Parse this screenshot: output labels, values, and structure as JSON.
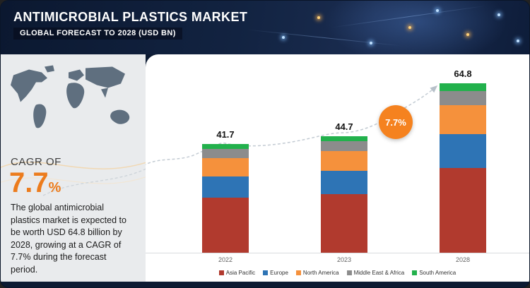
{
  "header": {
    "title": "ANTIMICROBIAL PLASTICS MARKET",
    "subtitle": "GLOBAL FORECAST TO 2028 (USD BN)"
  },
  "sidebar": {
    "cagr_label": "CAGR OF",
    "cagr_value": "7.7",
    "cagr_unit": "%",
    "description": "The global antimicrobial plastics market is expected to be worth USD 64.8 billion by 2028, growing at a CAGR of 7.7% during the forecast period."
  },
  "chart": {
    "growth_badge": "7.7%"
  },
  "chart_data": {
    "type": "bar",
    "stacked": true,
    "title": "Antimicrobial Plastics Market, Global Forecast to 2028 (USD BN)",
    "categories": [
      "2022",
      "2023",
      "2028"
    ],
    "totals": [
      "41.7",
      "44.7",
      "64.8"
    ],
    "series": [
      {
        "name": "Asia Pacific",
        "color": "#b13a2e",
        "values": [
          21.0,
          22.5,
          32.5
        ]
      },
      {
        "name": "Europe",
        "color": "#2e74b5",
        "values": [
          8.3,
          8.9,
          13.0
        ]
      },
      {
        "name": "North America",
        "color": "#f5913c",
        "values": [
          7.0,
          7.6,
          11.0
        ]
      },
      {
        "name": "Middle East & Africa",
        "color": "#8c8c8c",
        "values": [
          3.5,
          3.7,
          5.3
        ]
      },
      {
        "name": "South America",
        "color": "#22b14c",
        "values": [
          1.9,
          2.0,
          3.0
        ]
      }
    ],
    "ylabel": "USD BN",
    "legend_position": "bottom",
    "annotation": "7.7% growth between 2023 and 2028",
    "grid": false
  }
}
